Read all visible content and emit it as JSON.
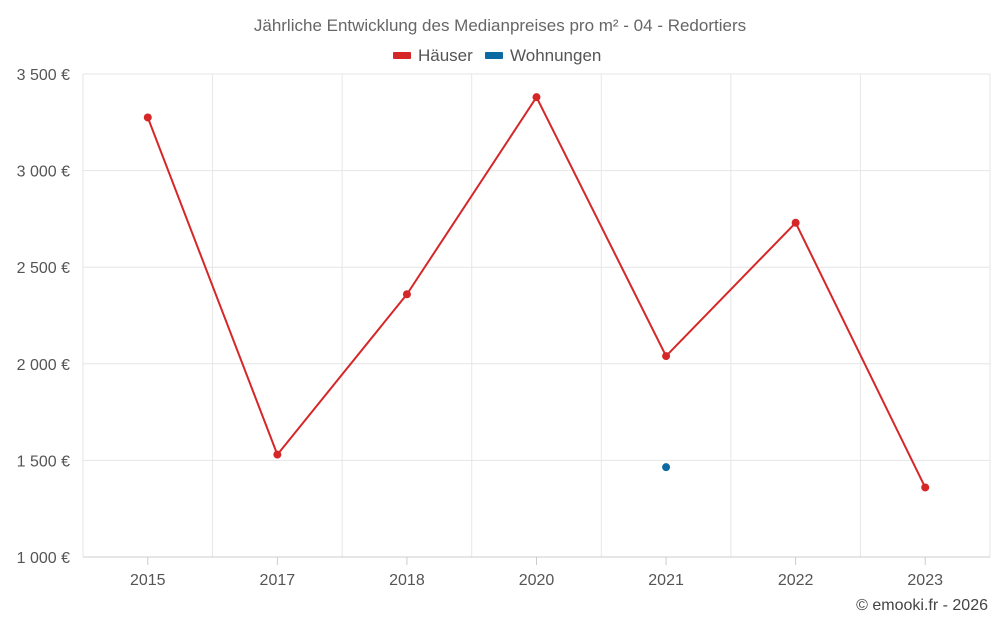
{
  "chart_data": {
    "type": "line",
    "title": "Jährliche Entwicklung des Medianpreises pro m² - 04 - Redortiers",
    "categories": [
      "2015",
      "2017",
      "2018",
      "2020",
      "2021",
      "2022",
      "2023"
    ],
    "series": [
      {
        "name": "Häuser",
        "color": "#d62728",
        "values": [
          3275,
          1530,
          2360,
          3380,
          2040,
          2730,
          1360
        ]
      },
      {
        "name": "Wohnungen",
        "color": "#0b6aa2",
        "values": [
          null,
          null,
          null,
          null,
          1465,
          null,
          null
        ]
      }
    ],
    "ylim": [
      1000,
      3500
    ],
    "yticks": [
      1000,
      1500,
      2000,
      2500,
      3000,
      3500
    ],
    "ytick_labels": [
      "1 000 €",
      "1 500 €",
      "2 000 €",
      "2 500 €",
      "3 000 €",
      "3 500 €"
    ],
    "xlabel": "",
    "ylabel": "",
    "grid": true,
    "legend_position": "top-center"
  },
  "credit": "© emooki.fr - 2026"
}
